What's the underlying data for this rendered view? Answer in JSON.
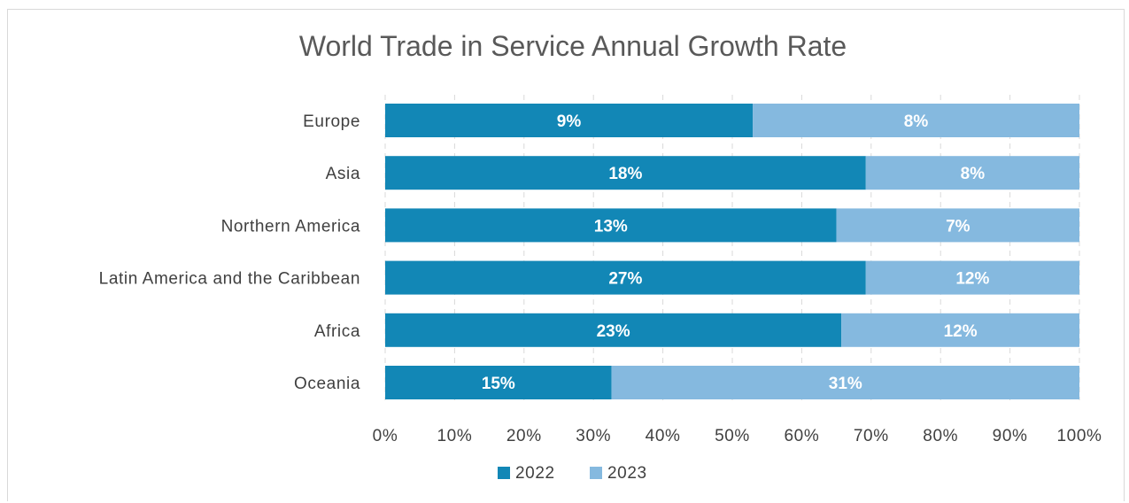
{
  "chart_data": {
    "type": "bar",
    "orientation": "horizontal",
    "stacking": "percent",
    "title": "World Trade in Service Annual Growth Rate",
    "categories": [
      "Europe",
      "Asia",
      "Northern America",
      "Latin America and the Caribbean",
      "Africa",
      "Oceania"
    ],
    "series": [
      {
        "name": "2022",
        "color": "#1287B6",
        "values": [
          9,
          18,
          13,
          27,
          23,
          15
        ],
        "labels": [
          "9%",
          "18%",
          "13%",
          "27%",
          "23%",
          "15%"
        ]
      },
      {
        "name": "2023",
        "color": "#85B9DF",
        "values": [
          8,
          8,
          7,
          12,
          12,
          31
        ],
        "labels": [
          "8%",
          "8%",
          "7%",
          "12%",
          "12%",
          "31%"
        ]
      }
    ],
    "xlim": [
      0,
      100
    ],
    "xticks": [
      "0%",
      "10%",
      "20%",
      "30%",
      "40%",
      "50%",
      "60%",
      "70%",
      "80%",
      "90%",
      "100%"
    ],
    "grid": true,
    "legend": "bottom"
  }
}
